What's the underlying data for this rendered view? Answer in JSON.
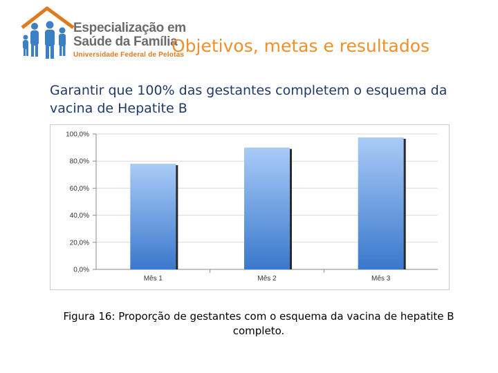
{
  "logo": {
    "line1": "Especialização em",
    "line2": "Saúde da Família",
    "line3": "Universidade Federal de Pelotas",
    "colors": {
      "roof": "#e07a1f",
      "people": "#3b7fc4",
      "text": "#6b6b6b"
    }
  },
  "header": {
    "title": "Objetivos, metas e resultados"
  },
  "slide": {
    "subtitle": "Garantir que 100% das gestantes completem o esquema da vacina de Hepatite B"
  },
  "chart_data": {
    "type": "bar",
    "categories": [
      "Mês 1",
      "Mês 2",
      "Mês 3"
    ],
    "values": [
      78,
      90,
      97.5
    ],
    "yticks": [
      "100,0%",
      "80,0%",
      "60,0%",
      "40,0%",
      "20,0%",
      "0,0%"
    ],
    "ylim": [
      0,
      100
    ],
    "grid": true,
    "bar_color_top": "#a9cbf7",
    "bar_color_bottom": "#3a78cc"
  },
  "caption": "Figura 16: Proporção de gestantes com o esquema da vacina de hepatite B completo."
}
